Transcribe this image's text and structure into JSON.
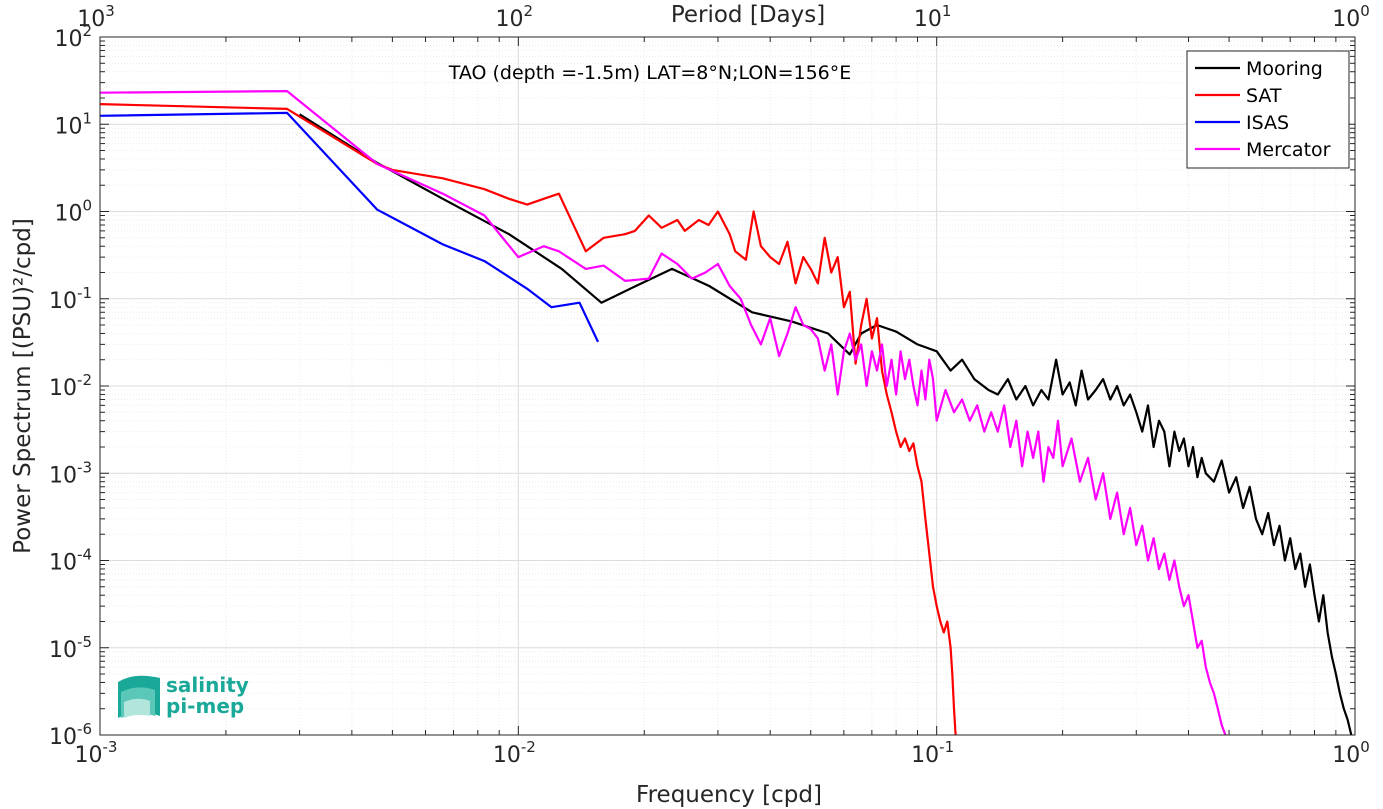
{
  "chart_data": {
    "type": "line",
    "title": "TAO (depth =-1.5m) LAT=8°N;LON=156°E",
    "xlabel": "Frequency [cpd]",
    "ylabel": "Power Spectrum [(PSU)²/cpd]",
    "top_xlabel": "Period [Days]",
    "xscale": "log",
    "yscale": "log",
    "xlim": [
      0.001,
      1
    ],
    "ylim": [
      1e-06,
      100
    ],
    "grid": true,
    "legend_position": "top-right",
    "x_ticks": [
      {
        "base": "10",
        "exp": "-3"
      },
      {
        "base": "10",
        "exp": "-2"
      },
      {
        "base": "10",
        "exp": "-1"
      },
      {
        "base": "10",
        "exp": "0"
      }
    ],
    "top_x_ticks": [
      {
        "base": "10",
        "exp": "3"
      },
      {
        "base": "10",
        "exp": "2"
      },
      {
        "base": "10",
        "exp": "1"
      },
      {
        "base": "10",
        "exp": "0"
      }
    ],
    "y_ticks": [
      {
        "base": "10",
        "exp": "-6"
      },
      {
        "base": "10",
        "exp": "-5"
      },
      {
        "base": "10",
        "exp": "-4"
      },
      {
        "base": "10",
        "exp": "-3"
      },
      {
        "base": "10",
        "exp": "-2"
      },
      {
        "base": "10",
        "exp": "-1"
      },
      {
        "base": "10",
        "exp": "0"
      },
      {
        "base": "10",
        "exp": "1"
      },
      {
        "base": "10",
        "exp": "2"
      }
    ],
    "series": [
      {
        "name": "Mooring",
        "color": "#000000",
        "points": [
          [
            0.003,
            13
          ],
          [
            0.0046,
            3.6
          ],
          [
            0.0066,
            1.4
          ],
          [
            0.0095,
            0.55
          ],
          [
            0.0127,
            0.22
          ],
          [
            0.0158,
            0.09
          ],
          [
            0.0191,
            0.14
          ],
          [
            0.0233,
            0.22
          ],
          [
            0.0286,
            0.14
          ],
          [
            0.0362,
            0.07
          ],
          [
            0.045,
            0.055
          ],
          [
            0.055,
            0.04
          ],
          [
            0.062,
            0.023
          ],
          [
            0.066,
            0.04
          ],
          [
            0.072,
            0.05
          ],
          [
            0.08,
            0.042
          ],
          [
            0.09,
            0.03
          ],
          [
            0.1,
            0.025
          ],
          [
            0.108,
            0.015
          ],
          [
            0.115,
            0.02
          ],
          [
            0.123,
            0.012
          ],
          [
            0.133,
            0.009
          ],
          [
            0.14,
            0.008
          ],
          [
            0.148,
            0.012
          ],
          [
            0.155,
            0.007
          ],
          [
            0.163,
            0.01
          ],
          [
            0.17,
            0.006
          ],
          [
            0.178,
            0.009
          ],
          [
            0.185,
            0.007
          ],
          [
            0.193,
            0.02
          ],
          [
            0.2,
            0.008
          ],
          [
            0.208,
            0.011
          ],
          [
            0.215,
            0.006
          ],
          [
            0.222,
            0.015
          ],
          [
            0.23,
            0.007
          ],
          [
            0.24,
            0.009
          ],
          [
            0.25,
            0.012
          ],
          [
            0.26,
            0.007
          ],
          [
            0.27,
            0.01
          ],
          [
            0.28,
            0.006
          ],
          [
            0.29,
            0.008
          ],
          [
            0.3,
            0.005
          ],
          [
            0.31,
            0.003
          ],
          [
            0.32,
            0.006
          ],
          [
            0.33,
            0.002
          ],
          [
            0.34,
            0.004
          ],
          [
            0.35,
            0.003
          ],
          [
            0.36,
            0.0012
          ],
          [
            0.37,
            0.003
          ],
          [
            0.38,
            0.0018
          ],
          [
            0.39,
            0.0025
          ],
          [
            0.4,
            0.0012
          ],
          [
            0.41,
            0.002
          ],
          [
            0.42,
            0.0009
          ],
          [
            0.43,
            0.0015
          ],
          [
            0.44,
            0.001
          ],
          [
            0.46,
            0.0008
          ],
          [
            0.48,
            0.0014
          ],
          [
            0.5,
            0.0006
          ],
          [
            0.52,
            0.0009
          ],
          [
            0.54,
            0.0004
          ],
          [
            0.56,
            0.0007
          ],
          [
            0.58,
            0.0003
          ],
          [
            0.6,
            0.0002
          ],
          [
            0.62,
            0.00035
          ],
          [
            0.64,
            0.00015
          ],
          [
            0.66,
            0.00025
          ],
          [
            0.68,
            0.0001
          ],
          [
            0.7,
            0.00018
          ],
          [
            0.72,
            8e-05
          ],
          [
            0.74,
            0.00012
          ],
          [
            0.76,
            5e-05
          ],
          [
            0.78,
            9e-05
          ],
          [
            0.8,
            4e-05
          ],
          [
            0.82,
            2e-05
          ],
          [
            0.84,
            4e-05
          ],
          [
            0.86,
            1.5e-05
          ],
          [
            0.88,
            8e-06
          ],
          [
            0.9,
            5e-06
          ],
          [
            0.92,
            3e-06
          ],
          [
            0.94,
            2e-06
          ],
          [
            0.96,
            1.5e-06
          ],
          [
            0.98,
            1e-06
          ]
        ]
      },
      {
        "name": "SAT",
        "color": "#ff0000",
        "points": [
          [
            0.001,
            17
          ],
          [
            0.0028,
            15
          ],
          [
            0.0046,
            3.5
          ],
          [
            0.005,
            3.0
          ],
          [
            0.0066,
            2.4
          ],
          [
            0.0083,
            1.8
          ],
          [
            0.0095,
            1.4
          ],
          [
            0.0105,
            1.2
          ],
          [
            0.0115,
            1.4
          ],
          [
            0.0125,
            1.6
          ],
          [
            0.0145,
            0.35
          ],
          [
            0.016,
            0.5
          ],
          [
            0.018,
            0.55
          ],
          [
            0.019,
            0.6
          ],
          [
            0.0205,
            0.9
          ],
          [
            0.022,
            0.65
          ],
          [
            0.024,
            0.8
          ],
          [
            0.025,
            0.6
          ],
          [
            0.027,
            0.8
          ],
          [
            0.0285,
            0.7
          ],
          [
            0.03,
            1.0
          ],
          [
            0.032,
            0.55
          ],
          [
            0.033,
            0.35
          ],
          [
            0.035,
            0.28
          ],
          [
            0.0365,
            1.0
          ],
          [
            0.038,
            0.4
          ],
          [
            0.04,
            0.3
          ],
          [
            0.042,
            0.25
          ],
          [
            0.044,
            0.45
          ],
          [
            0.046,
            0.15
          ],
          [
            0.048,
            0.3
          ],
          [
            0.05,
            0.22
          ],
          [
            0.052,
            0.15
          ],
          [
            0.054,
            0.5
          ],
          [
            0.056,
            0.2
          ],
          [
            0.058,
            0.3
          ],
          [
            0.06,
            0.08
          ],
          [
            0.062,
            0.12
          ],
          [
            0.064,
            0.018
          ],
          [
            0.066,
            0.05
          ],
          [
            0.068,
            0.1
          ],
          [
            0.07,
            0.035
          ],
          [
            0.072,
            0.06
          ],
          [
            0.074,
            0.015
          ],
          [
            0.076,
            0.008
          ],
          [
            0.078,
            0.005
          ],
          [
            0.08,
            0.003
          ],
          [
            0.082,
            0.002
          ],
          [
            0.084,
            0.0025
          ],
          [
            0.086,
            0.0018
          ],
          [
            0.088,
            0.0022
          ],
          [
            0.09,
            0.0012
          ],
          [
            0.092,
            0.0008
          ],
          [
            0.094,
            0.0003
          ],
          [
            0.096,
            0.00012
          ],
          [
            0.098,
            5e-05
          ],
          [
            0.1,
            3e-05
          ],
          [
            0.102,
            2e-05
          ],
          [
            0.104,
            1.5e-05
          ],
          [
            0.106,
            2e-05
          ],
          [
            0.108,
            1e-05
          ],
          [
            0.109,
            5e-06
          ],
          [
            0.11,
            2e-06
          ],
          [
            0.111,
            1e-06
          ]
        ]
      },
      {
        "name": "ISAS",
        "color": "#0000ff",
        "points": [
          [
            0.001,
            12.5
          ],
          [
            0.0028,
            13.5
          ],
          [
            0.0046,
            1.05
          ],
          [
            0.0066,
            0.42
          ],
          [
            0.0083,
            0.27
          ],
          [
            0.0105,
            0.13
          ],
          [
            0.012,
            0.08
          ],
          [
            0.014,
            0.09
          ],
          [
            0.0155,
            0.032
          ]
        ]
      },
      {
        "name": "Mercator",
        "color": "#ff00ff",
        "points": [
          [
            0.001,
            23
          ],
          [
            0.0028,
            24
          ],
          [
            0.0046,
            3.5
          ],
          [
            0.0066,
            1.6
          ],
          [
            0.0083,
            0.9
          ],
          [
            0.01,
            0.3
          ],
          [
            0.0115,
            0.4
          ],
          [
            0.0125,
            0.35
          ],
          [
            0.0145,
            0.22
          ],
          [
            0.016,
            0.24
          ],
          [
            0.018,
            0.16
          ],
          [
            0.0205,
            0.17
          ],
          [
            0.022,
            0.33
          ],
          [
            0.024,
            0.25
          ],
          [
            0.026,
            0.17
          ],
          [
            0.028,
            0.2
          ],
          [
            0.03,
            0.25
          ],
          [
            0.032,
            0.14
          ],
          [
            0.034,
            0.1
          ],
          [
            0.036,
            0.05
          ],
          [
            0.038,
            0.03
          ],
          [
            0.04,
            0.06
          ],
          [
            0.042,
            0.022
          ],
          [
            0.044,
            0.04
          ],
          [
            0.046,
            0.08
          ],
          [
            0.048,
            0.05
          ],
          [
            0.05,
            0.045
          ],
          [
            0.052,
            0.035
          ],
          [
            0.054,
            0.015
          ],
          [
            0.056,
            0.03
          ],
          [
            0.058,
            0.008
          ],
          [
            0.06,
            0.025
          ],
          [
            0.062,
            0.04
          ],
          [
            0.064,
            0.02
          ],
          [
            0.066,
            0.03
          ],
          [
            0.068,
            0.01
          ],
          [
            0.07,
            0.025
          ],
          [
            0.072,
            0.015
          ],
          [
            0.074,
            0.03
          ],
          [
            0.076,
            0.01
          ],
          [
            0.078,
            0.02
          ],
          [
            0.08,
            0.008
          ],
          [
            0.082,
            0.025
          ],
          [
            0.084,
            0.012
          ],
          [
            0.086,
            0.02
          ],
          [
            0.088,
            0.01
          ],
          [
            0.09,
            0.006
          ],
          [
            0.092,
            0.015
          ],
          [
            0.094,
            0.007
          ],
          [
            0.096,
            0.02
          ],
          [
            0.098,
            0.012
          ],
          [
            0.1,
            0.004
          ],
          [
            0.105,
            0.009
          ],
          [
            0.11,
            0.005
          ],
          [
            0.115,
            0.007
          ],
          [
            0.12,
            0.004
          ],
          [
            0.125,
            0.006
          ],
          [
            0.13,
            0.003
          ],
          [
            0.135,
            0.005
          ],
          [
            0.14,
            0.003
          ],
          [
            0.145,
            0.006
          ],
          [
            0.15,
            0.002
          ],
          [
            0.155,
            0.004
          ],
          [
            0.16,
            0.0012
          ],
          [
            0.165,
            0.003
          ],
          [
            0.17,
            0.0015
          ],
          [
            0.175,
            0.003
          ],
          [
            0.18,
            0.0008
          ],
          [
            0.185,
            0.002
          ],
          [
            0.19,
            0.0015
          ],
          [
            0.195,
            0.004
          ],
          [
            0.2,
            0.0012
          ],
          [
            0.21,
            0.0025
          ],
          [
            0.22,
            0.0008
          ],
          [
            0.23,
            0.0015
          ],
          [
            0.24,
            0.0005
          ],
          [
            0.25,
            0.001
          ],
          [
            0.26,
            0.0003
          ],
          [
            0.27,
            0.0006
          ],
          [
            0.28,
            0.0002
          ],
          [
            0.29,
            0.0004
          ],
          [
            0.3,
            0.00015
          ],
          [
            0.31,
            0.00025
          ],
          [
            0.32,
            0.0001
          ],
          [
            0.33,
            0.00018
          ],
          [
            0.34,
            8e-05
          ],
          [
            0.35,
            0.00012
          ],
          [
            0.36,
            6e-05
          ],
          [
            0.37,
            0.0001
          ],
          [
            0.38,
            5e-05
          ],
          [
            0.39,
            3e-05
          ],
          [
            0.4,
            4e-05
          ],
          [
            0.41,
            2e-05
          ],
          [
            0.42,
            1e-05
          ],
          [
            0.43,
            1.2e-05
          ],
          [
            0.44,
            6e-06
          ],
          [
            0.45,
            4e-06
          ],
          [
            0.46,
            3e-06
          ],
          [
            0.47,
            2e-06
          ],
          [
            0.48,
            1.3e-06
          ],
          [
            0.49,
            1e-06
          ]
        ]
      }
    ]
  },
  "logo": {
    "line1": "salinity",
    "line2": "pi-mep"
  }
}
